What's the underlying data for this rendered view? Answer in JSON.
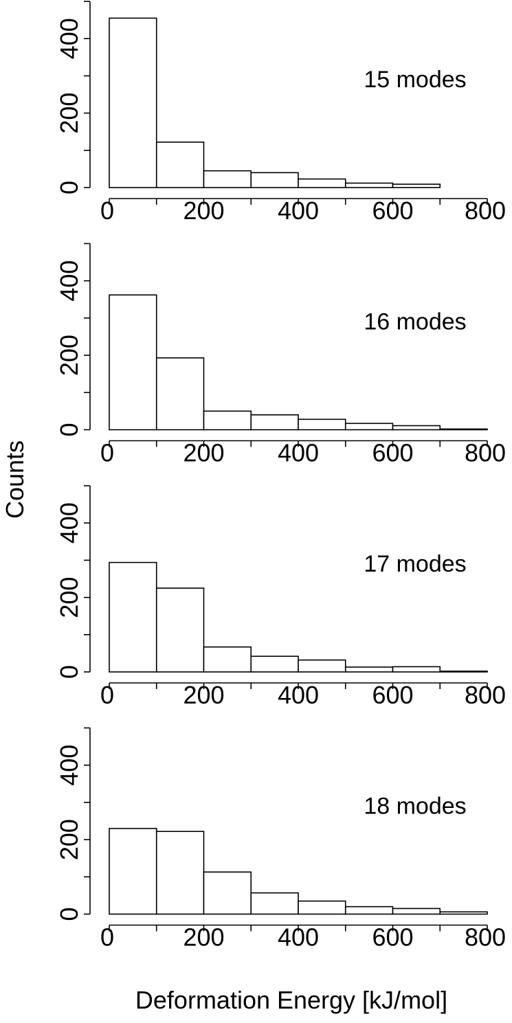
{
  "figure": {
    "ylabel": "Counts",
    "xlabel": "Deformation Energy [kJ/mol]"
  },
  "chart_data": [
    {
      "type": "bar",
      "annotation": "15 modes",
      "bin_edges": [
        0,
        100,
        200,
        300,
        400,
        500,
        600,
        700
      ],
      "values": [
        455,
        122,
        45,
        40,
        23,
        12,
        9
      ],
      "xlim": [
        0,
        800
      ],
      "ylim": [
        0,
        500
      ],
      "xticks": [
        0,
        200,
        400,
        600,
        800
      ],
      "yticks": [
        0,
        200,
        400
      ],
      "grid": false
    },
    {
      "type": "bar",
      "annotation": "16 modes",
      "bin_edges": [
        0,
        100,
        200,
        300,
        400,
        500,
        600,
        700,
        800
      ],
      "values": [
        362,
        193,
        50,
        40,
        28,
        17,
        11,
        2
      ],
      "xlim": [
        0,
        800
      ],
      "ylim": [
        0,
        500
      ],
      "xticks": [
        0,
        200,
        400,
        600,
        800
      ],
      "yticks": [
        0,
        200,
        400
      ],
      "grid": false
    },
    {
      "type": "bar",
      "annotation": "17 modes",
      "bin_edges": [
        0,
        100,
        200,
        300,
        400,
        500,
        600,
        700,
        800
      ],
      "values": [
        294,
        225,
        67,
        42,
        32,
        13,
        14,
        2
      ],
      "xlim": [
        0,
        800
      ],
      "ylim": [
        0,
        500
      ],
      "xticks": [
        0,
        200,
        400,
        600,
        800
      ],
      "yticks": [
        0,
        200,
        400
      ],
      "grid": false
    },
    {
      "type": "bar",
      "annotation": "18 modes",
      "bin_edges": [
        0,
        100,
        200,
        300,
        400,
        500,
        600,
        700,
        800
      ],
      "values": [
        230,
        222,
        113,
        57,
        35,
        20,
        15,
        6
      ],
      "xlim": [
        0,
        800
      ],
      "ylim": [
        0,
        500
      ],
      "xticks": [
        0,
        200,
        400,
        600,
        800
      ],
      "yticks": [
        0,
        200,
        400
      ],
      "grid": false
    }
  ]
}
